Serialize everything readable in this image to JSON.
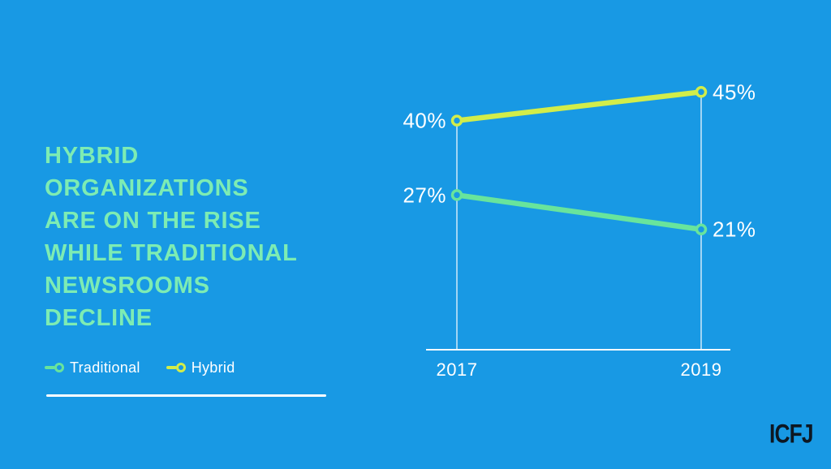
{
  "slide": {
    "title": "HYBRID\nORGANIZATIONS\nARE ON THE RISE\nWHILE TRADITIONAL\nNEWSROOMS\nDECLINE",
    "logo_text": "ICFJ"
  },
  "colors": {
    "background": "#1899E4",
    "title_text": "#7DECB3",
    "traditional": "#68E49C",
    "hybrid": "#D2ED4A",
    "axis_and_labels": "#FFFFFF",
    "logo_text": "#0D1722"
  },
  "legend": {
    "items": [
      {
        "label": "Traditional",
        "color": "#68E49C"
      },
      {
        "label": "Hybrid",
        "color": "#D2ED4A"
      }
    ]
  },
  "chart_data": {
    "type": "line",
    "categories": [
      "2017",
      "2019"
    ],
    "series": [
      {
        "name": "Traditional",
        "values": [
          27,
          21
        ],
        "labels": [
          "27%",
          "21%"
        ],
        "color": "#68E49C"
      },
      {
        "name": "Hybrid",
        "values": [
          40,
          45
        ],
        "labels": [
          "40%",
          "45%"
        ],
        "color": "#D2ED4A"
      }
    ],
    "title": "Hybrid organizations are on the rise while traditional newsrooms decline",
    "xlabel": "",
    "ylabel": "",
    "ylim": [
      0,
      50
    ],
    "grid": "vertical-guides-only",
    "legend_position": "bottom-left"
  }
}
